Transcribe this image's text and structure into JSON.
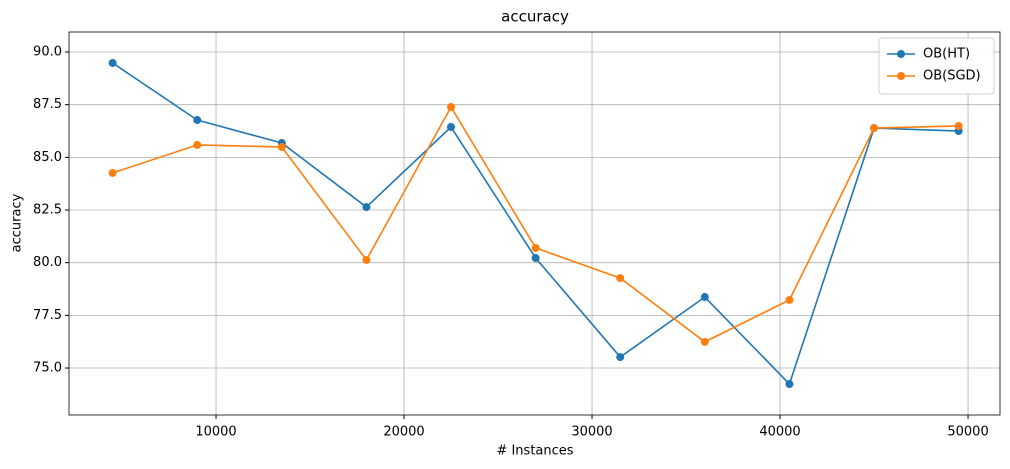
{
  "chart_data": {
    "type": "line",
    "title": "accuracy",
    "xlabel": "# Instances",
    "ylabel": "accuracy",
    "x": [
      4500,
      9000,
      13500,
      18000,
      22500,
      27000,
      31500,
      36000,
      40500,
      45000,
      49500
    ],
    "series": [
      {
        "name": "OB(HT)",
        "color": "#1f77b4",
        "values": [
          89.48,
          86.77,
          85.68,
          82.64,
          86.44,
          80.22,
          75.52,
          78.37,
          74.24,
          86.39,
          86.25
        ]
      },
      {
        "name": "OB(SGD)",
        "color": "#ff7f0e",
        "values": [
          84.26,
          85.59,
          85.49,
          80.13,
          87.39,
          80.7,
          79.27,
          76.24,
          78.23,
          86.39,
          86.49
        ]
      }
    ],
    "xlim": [
      2180,
      51700
    ],
    "ylim": [
      72.77,
      90.95
    ],
    "xticks": [
      10000,
      20000,
      30000,
      40000,
      50000
    ],
    "yticks": [
      {
        "value": 75,
        "label": "75.0"
      },
      {
        "value": 77.5,
        "label": "77.5"
      },
      {
        "value": 80,
        "label": "80.0"
      },
      {
        "value": 82.5,
        "label": "82.5"
      },
      {
        "value": 85,
        "label": "85.0"
      },
      {
        "value": 87.5,
        "label": "87.5"
      },
      {
        "value": 90,
        "label": "90.0"
      }
    ],
    "grid": true,
    "legend": "upper-right"
  }
}
